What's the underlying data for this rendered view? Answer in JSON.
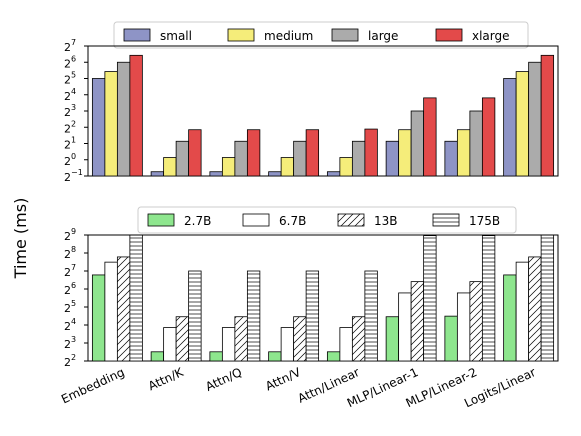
{
  "chart_data": [
    {
      "type": "bar",
      "ylabel": "Time (ms)",
      "yscale": "log2",
      "ylim_exp": [
        -1,
        7
      ],
      "y_tick_exponents": [
        -1,
        0,
        1,
        2,
        3,
        4,
        5,
        6,
        7
      ],
      "categories": [
        "Embedding",
        "Attn/K",
        "Attn/Q",
        "Attn/V",
        "Attn/Linear",
        "MLP/Linear-1",
        "MLP/Linear-2",
        "Logits/Linear"
      ],
      "legend_position": "top",
      "series": [
        {
          "name": "small",
          "color": "#8e94c6",
          "values": [
            32,
            0.6,
            0.6,
            0.6,
            0.6,
            2.2,
            2.2,
            32
          ]
        },
        {
          "name": "medium",
          "color": "#f5ed7a",
          "values": [
            43,
            1.1,
            1.1,
            1.1,
            1.1,
            3.6,
            3.6,
            43
          ]
        },
        {
          "name": "large",
          "color": "#ababab",
          "values": [
            64,
            2.2,
            2.2,
            2.2,
            2.2,
            8,
            8,
            64
          ]
        },
        {
          "name": "xlarge",
          "color": "#e34a4a",
          "values": [
            86,
            3.6,
            3.6,
            3.6,
            3.7,
            14,
            14,
            86
          ]
        }
      ]
    },
    {
      "type": "bar",
      "ylabel": "Time (ms)",
      "yscale": "log2",
      "ylim_exp": [
        2,
        9
      ],
      "y_tick_exponents": [
        2,
        3,
        4,
        5,
        6,
        7,
        8,
        9
      ],
      "categories": [
        "Embedding",
        "Attn/K",
        "Attn/Q",
        "Attn/V",
        "Attn/Linear",
        "MLP/Linear-1",
        "MLP/Linear-2",
        "Logits/Linear"
      ],
      "legend_position": "top",
      "series": [
        {
          "name": "2.7B",
          "color": "#8ee68e",
          "hatch": "none",
          "values": [
            110,
            5.7,
            5.7,
            5.7,
            5.7,
            22,
            22.5,
            110
          ]
        },
        {
          "name": "6.7B",
          "color": "#ffffff",
          "hatch": "none",
          "values": [
            180,
            14.5,
            14.5,
            14.5,
            14.5,
            55,
            55,
            180
          ]
        },
        {
          "name": "13B",
          "color": "#ffffff",
          "hatch": "diagonal",
          "values": [
            220,
            22,
            22,
            22,
            22,
            85,
            85,
            220
          ]
        },
        {
          "name": "175B",
          "color": "#ffffff",
          "hatch": "horizontal",
          "values": [
            510,
            128,
            128,
            128,
            128,
            500,
            500,
            510
          ]
        }
      ]
    }
  ]
}
